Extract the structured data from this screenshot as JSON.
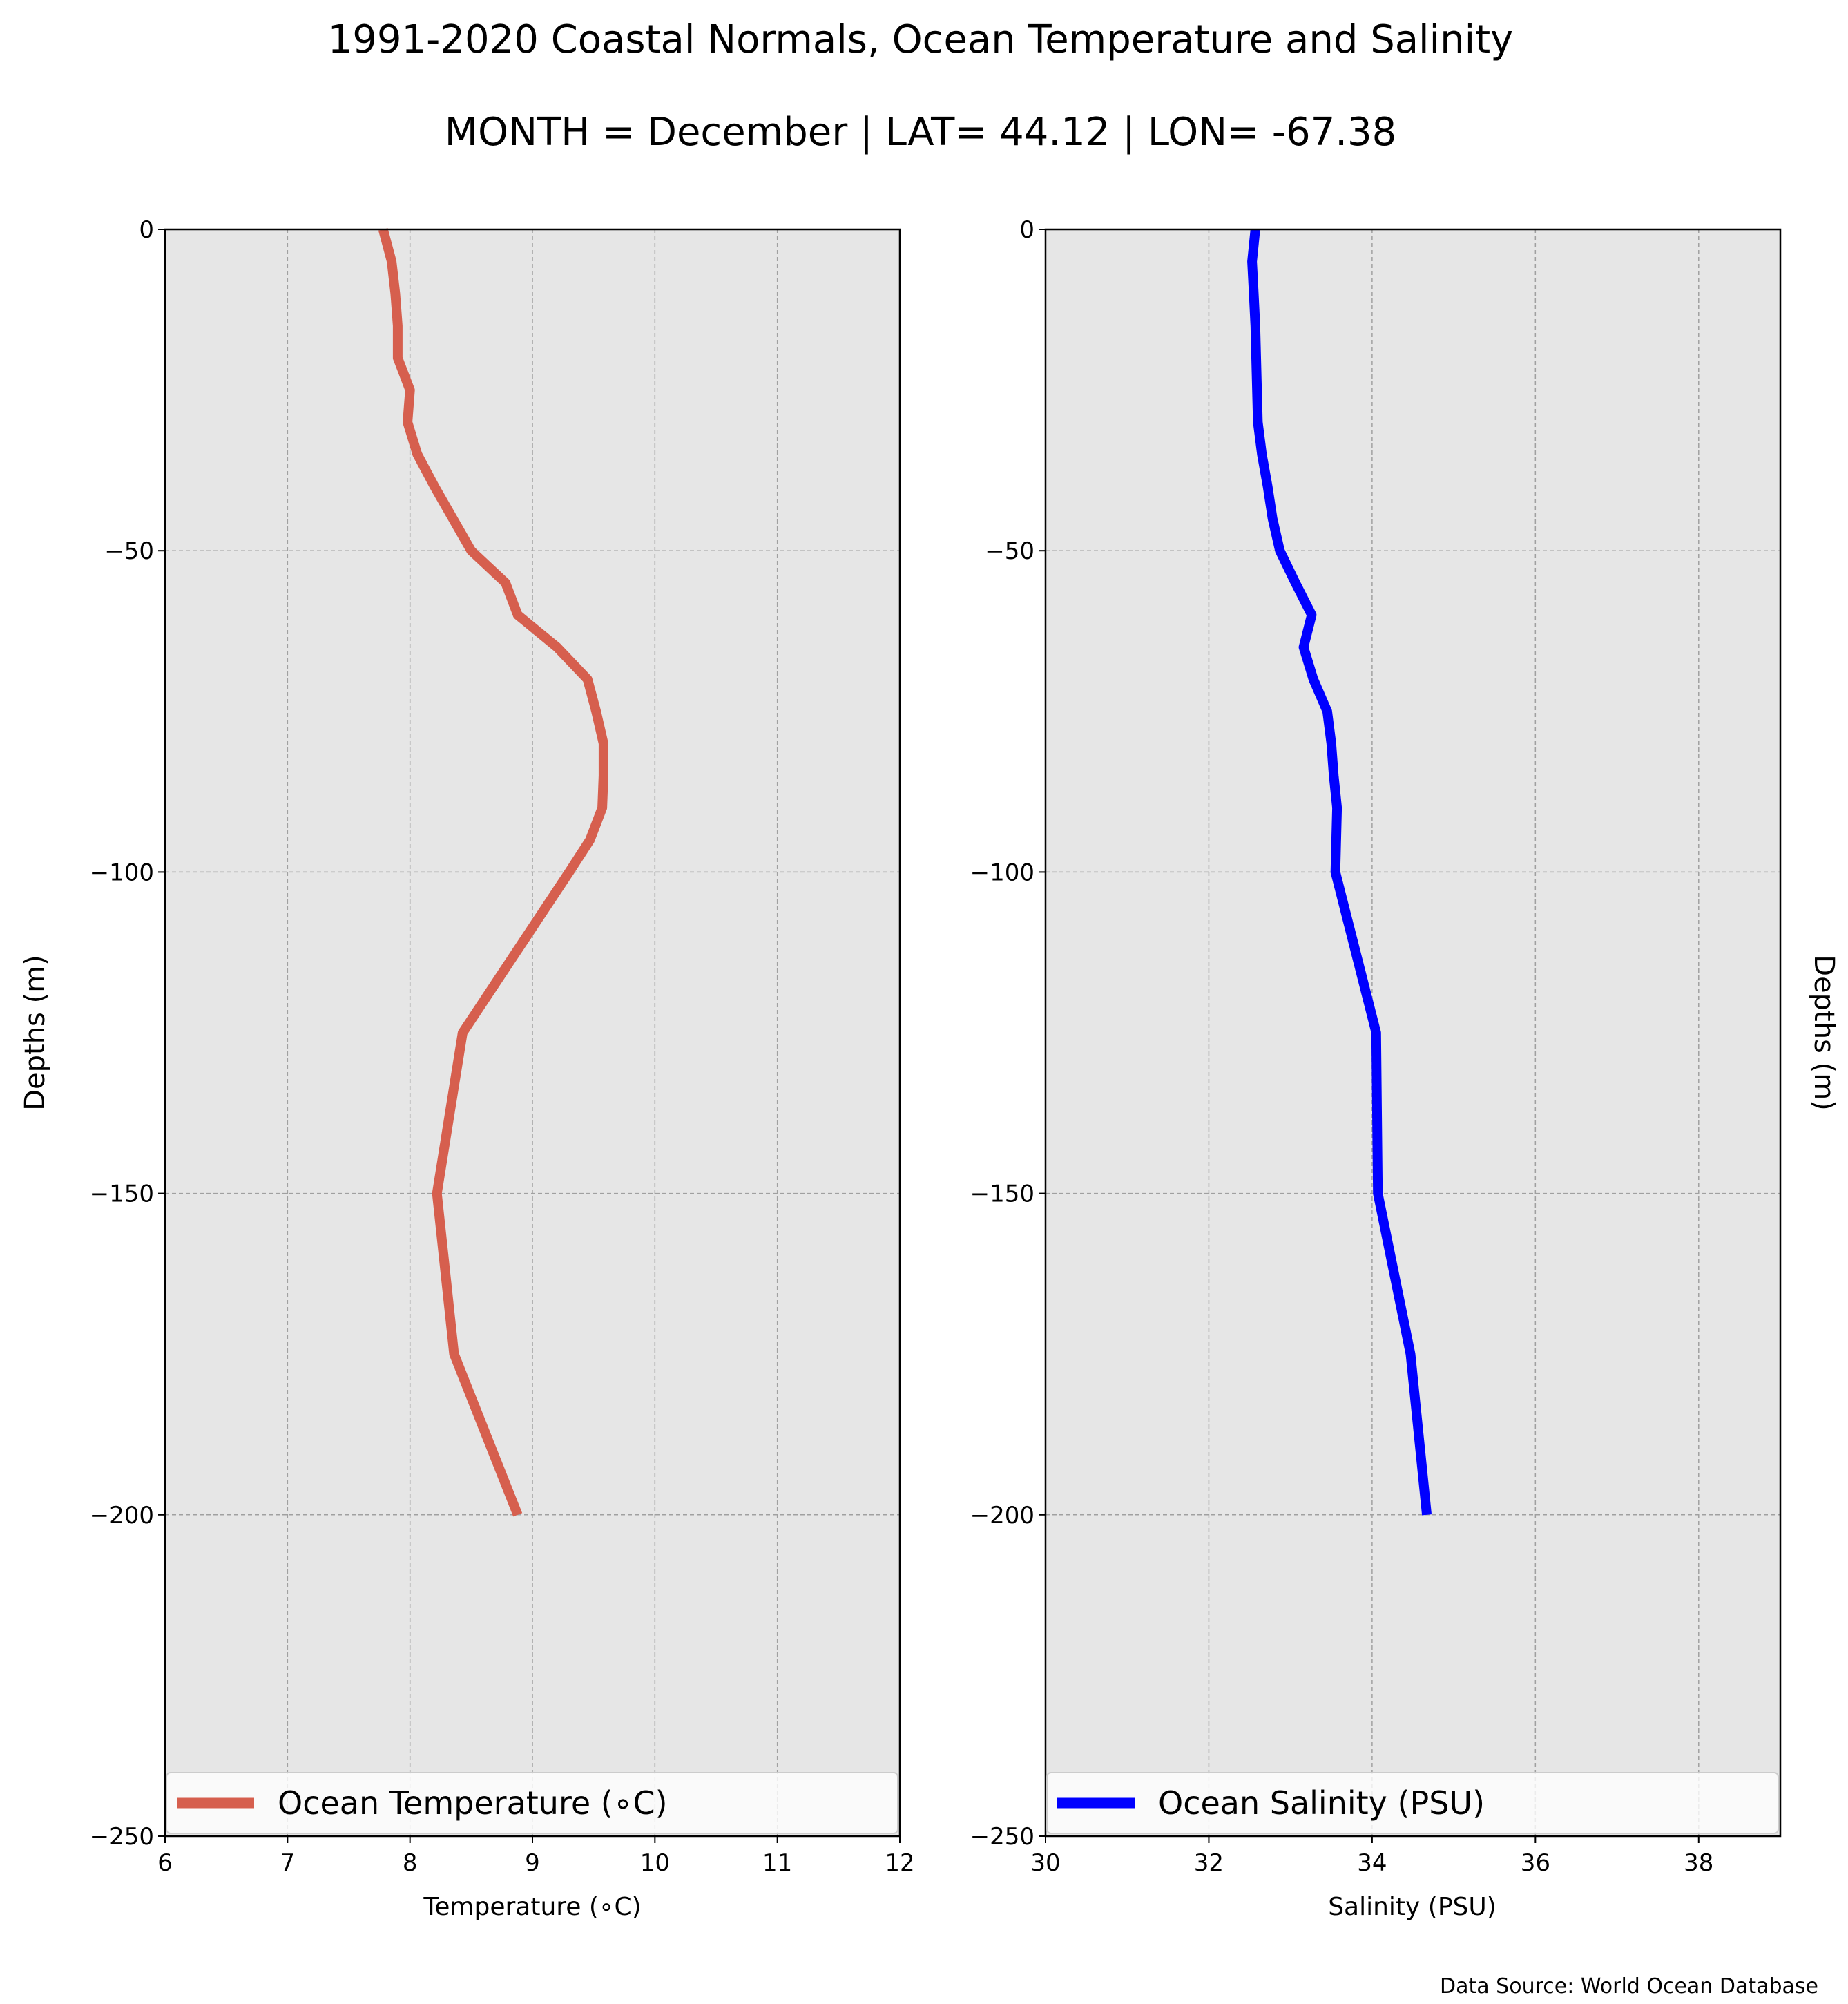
{
  "title": "1991-2020 Coastal Normals, Ocean Temperature and Salinity",
  "subtitle": "MONTH = December | LAT= 44.12 | LON= -67.38",
  "source_note": "Data Source: World Ocean Database",
  "chart_data": [
    {
      "type": "line",
      "xlabel": "Temperature ($^\\circ$C)",
      "xlabel_display": "Temperature (∘C)",
      "ylabel": "Depths (m)",
      "xlim": [
        6,
        12
      ],
      "ylim": [
        -250,
        0
      ],
      "xticks": [
        "6",
        "7",
        "8",
        "9",
        "10",
        "11",
        "12"
      ],
      "yticks": [
        "0",
        "−50",
        "−100",
        "−150",
        "−200",
        "−250"
      ],
      "grid": true,
      "legend_position": "bottom",
      "series": [
        {
          "name": "Ocean Temperature (∘C)",
          "color": "#d65f4e",
          "depth": [
            0,
            -5,
            -10,
            -15,
            -20,
            -25,
            -30,
            -35,
            -40,
            -45,
            -50,
            -55,
            -60,
            -65,
            -70,
            -75,
            -80,
            -85,
            -90,
            -95,
            -100,
            -125,
            -150,
            -175,
            -200
          ],
          "values": [
            7.78,
            7.85,
            7.88,
            7.9,
            7.9,
            8.0,
            7.98,
            8.06,
            8.2,
            8.35,
            8.5,
            8.78,
            8.88,
            9.2,
            9.45,
            9.52,
            9.58,
            9.58,
            9.57,
            9.47,
            9.3,
            8.43,
            8.22,
            8.36,
            8.88
          ]
        }
      ]
    },
    {
      "type": "line",
      "xlabel": "Salinity (PSU)",
      "ylabel": "Depths (m)",
      "xlim": [
        30,
        39
      ],
      "ylim": [
        -250,
        0
      ],
      "xticks": [
        "30",
        "32",
        "34",
        "36",
        "38"
      ],
      "yticks": [
        "0",
        "−50",
        "−100",
        "−150",
        "−200",
        "−250"
      ],
      "grid": true,
      "legend_position": "bottom",
      "series": [
        {
          "name": "Ocean Salinity (PSU)",
          "color": "#0000ff",
          "depth": [
            0,
            -5,
            -10,
            -15,
            -20,
            -25,
            -30,
            -35,
            -40,
            -45,
            -50,
            -55,
            -60,
            -65,
            -70,
            -75,
            -80,
            -85,
            -90,
            -95,
            -100,
            -125,
            -150,
            -175,
            -200
          ],
          "values": [
            32.57,
            32.53,
            32.55,
            32.57,
            32.58,
            32.59,
            32.6,
            32.65,
            32.72,
            32.78,
            32.87,
            33.06,
            33.26,
            33.16,
            33.28,
            33.45,
            33.5,
            33.53,
            33.57,
            33.56,
            33.55,
            34.05,
            34.07,
            34.47,
            34.67
          ]
        }
      ]
    }
  ]
}
